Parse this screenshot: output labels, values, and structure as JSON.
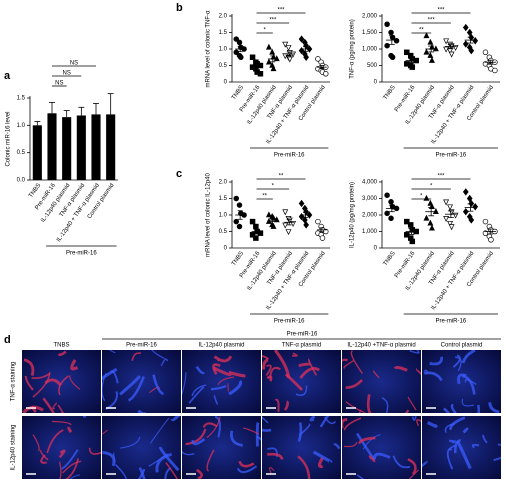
{
  "chart_data": [
    {
      "type": "bar",
      "panel_label": "a",
      "ylabel": "Colonic miR-16 level",
      "group_label": "Pre-miR-16",
      "categories": [
        "TNBS",
        "Pre-miR-16",
        "IL-12p40 plasmid",
        "TNF-α plasmid",
        "IL-12p40 + TNF-α plasmid",
        "Control plasmid"
      ],
      "values": [
        1.0,
        1.22,
        1.15,
        1.18,
        1.2,
        1.2
      ],
      "errors": [
        0.07,
        0.2,
        0.12,
        0.15,
        0.2,
        0.38
      ],
      "color": "#000000",
      "ylim": [
        0,
        1.5
      ],
      "yticks": [
        {
          "value": 0,
          "label": "0.0"
        },
        0.5,
        {
          "value": 1,
          "label": "1.0"
        },
        1.5
      ],
      "comparisons": [
        {
          "from": 1,
          "to": 4,
          "label": "NS"
        },
        {
          "from": 1,
          "to": 3,
          "label": "NS"
        },
        {
          "from": 1,
          "to": 2,
          "label": "NS"
        }
      ]
    },
    {
      "type": "dotplot",
      "panel_label": "b",
      "ylabel": "mRNA level of colonic TNF-α",
      "group_label": "Pre-miR-16",
      "categories": [
        "TNBS",
        "Pre-miR-16",
        "IL-12p40 plasmid",
        "TNF-α plasmid",
        "IL-12p40 + TNF-α plasmid",
        "Control plasmid"
      ],
      "markers": [
        "circle",
        "square",
        "triangle",
        "triangle-down-open",
        "diamond",
        "circle-open"
      ],
      "values": [
        [
          1.3,
          1.2,
          1.05,
          1.0,
          0.9,
          0.8,
          0.75
        ],
        [
          0.75,
          0.6,
          0.55,
          0.5,
          0.45,
          0.4,
          0.3,
          0.25
        ],
        [
          1.05,
          0.9,
          0.75,
          0.7,
          0.6,
          0.5,
          0.4
        ],
        [
          1.15,
          1.05,
          0.9,
          0.85,
          0.8,
          0.75,
          0.7
        ],
        [
          1.3,
          1.2,
          1.1,
          1.0,
          0.95,
          0.85,
          0.75
        ],
        [
          0.7,
          0.6,
          0.5,
          0.45,
          0.4,
          0.35,
          0.3,
          0.25
        ]
      ],
      "means": [
        1.0,
        0.5,
        0.7,
        0.85,
        1.0,
        0.45
      ],
      "errors": [
        0.08,
        0.06,
        0.09,
        0.06,
        0.07,
        0.05
      ],
      "ylim": [
        0,
        2
      ],
      "yticks": [
        0,
        0.5,
        {
          "value": 1,
          "label": "1.0"
        },
        1.5,
        {
          "value": 2,
          "label": "2.0"
        }
      ],
      "comparisons": [
        {
          "from": 1,
          "to": 4,
          "label": "***"
        },
        {
          "from": 1,
          "to": 3,
          "label": "***"
        },
        {
          "from": 1,
          "to": 2,
          "label": "*"
        }
      ]
    },
    {
      "type": "dotplot",
      "ylabel": "TNF-α (pg/mg protein)",
      "group_label": "Pre-miR-16",
      "categories": [
        "TNBS",
        "Pre-miR-16",
        "IL-12p40 plasmid",
        "TNF-α plasmid",
        "IL-12p40 + TNF-α plasmid",
        "Control plasmid"
      ],
      "markers": [
        "circle",
        "square",
        "triangle",
        "triangle-down-open",
        "diamond",
        "circle-open"
      ],
      "values": [
        [
          1750,
          1500,
          1350,
          1250,
          1100,
          800,
          750
        ],
        [
          900,
          800,
          700,
          650,
          550,
          500,
          450
        ],
        [
          1400,
          1200,
          1050,
          1000,
          900,
          800,
          650
        ],
        [
          1250,
          1150,
          1100,
          1050,
          1000,
          950,
          850
        ],
        [
          1650,
          1500,
          1350,
          1250,
          1150,
          1050,
          950
        ],
        [
          900,
          750,
          650,
          600,
          550,
          500,
          400,
          350
        ]
      ],
      "means": [
        1270,
        650,
        1000,
        1080,
        1270,
        600
      ],
      "errors": [
        130,
        60,
        90,
        50,
        90,
        60
      ],
      "ylim": [
        0,
        2000
      ],
      "yticks": [
        0,
        500,
        {
          "value": 1000,
          "label": "1,000"
        },
        {
          "value": 1500,
          "label": "1,500"
        },
        {
          "value": 2000,
          "label": "2,000"
        }
      ],
      "comparisons": [
        {
          "from": 1,
          "to": 4,
          "label": "***"
        },
        {
          "from": 1,
          "to": 3,
          "label": "***"
        },
        {
          "from": 1,
          "to": 2,
          "label": "**"
        }
      ]
    },
    {
      "type": "dotplot",
      "panel_label": "c",
      "ylabel": "mRNA level of colonic IL-12p40",
      "group_label": "Pre-miR-16",
      "categories": [
        "TNBS",
        "Pre-miR-16",
        "IL-12p40 plasmid",
        "TNF-α plasmid",
        "IL-12p40 + TNF-α plasmid",
        "Control plasmid"
      ],
      "markers": [
        "circle",
        "square",
        "triangle",
        "triangle-down-open",
        "diamond",
        "circle-open"
      ],
      "values": [
        [
          1.5,
          1.3,
          1.05,
          1.0,
          0.8,
          0.65
        ],
        [
          0.8,
          0.65,
          0.5,
          0.45,
          0.4,
          0.3
        ],
        [
          1.0,
          0.95,
          0.9,
          0.85,
          0.8,
          0.7,
          0.65
        ],
        [
          1.1,
          0.9,
          0.85,
          0.75,
          0.7,
          0.5
        ],
        [
          1.35,
          1.2,
          1.1,
          1.0,
          0.95,
          0.85,
          0.7
        ],
        [
          0.8,
          0.65,
          0.55,
          0.5,
          0.45,
          0.4,
          0.3
        ]
      ],
      "means": [
        1.0,
        0.5,
        0.85,
        0.78,
        1.0,
        0.55
      ],
      "errors": [
        0.13,
        0.07,
        0.05,
        0.08,
        0.08,
        0.06
      ],
      "ylim": [
        0,
        2
      ],
      "yticks": [
        0,
        0.5,
        {
          "value": 1,
          "label": "1.0"
        },
        1.5,
        {
          "value": 2,
          "label": "2.0"
        }
      ],
      "comparisons": [
        {
          "from": 1,
          "to": 4,
          "label": "**"
        },
        {
          "from": 1,
          "to": 3,
          "label": "*"
        },
        {
          "from": 1,
          "to": 2,
          "label": "**"
        }
      ]
    },
    {
      "type": "dotplot",
      "ylabel": "IL-12p40 (pg/mg protein)",
      "group_label": "Pre-miR-16",
      "categories": [
        "TNBS",
        "Pre-miR-16",
        "IL-12p40 plasmid",
        "TNF-α plasmid",
        "IL-12p40 + TNF-α plasmid",
        "Control plasmid"
      ],
      "markers": [
        "circle",
        "square",
        "triangle",
        "triangle-down-open",
        "diamond",
        "circle-open"
      ],
      "values": [
        [
          3200,
          2800,
          2500,
          2400,
          2100,
          1800
        ],
        [
          1600,
          1400,
          1100,
          1000,
          800,
          600,
          400
        ],
        [
          3000,
          2700,
          2500,
          2200,
          1800,
          1500,
          1200
        ],
        [
          2800,
          2500,
          2200,
          2000,
          1800,
          1500,
          1300
        ],
        [
          3400,
          3000,
          2700,
          2500,
          2200,
          1900,
          1700
        ],
        [
          1600,
          1300,
          1100,
          1000,
          900,
          700,
          500
        ]
      ],
      "means": [
        2400,
        1000,
        2200,
        2050,
        2450,
        1000
      ],
      "errors": [
        200,
        180,
        250,
        200,
        220,
        150
      ],
      "ylim": [
        0,
        4000
      ],
      "yticks": [
        0,
        {
          "value": 1000,
          "label": "1,000"
        },
        {
          "value": 2000,
          "label": "2,000"
        },
        {
          "value": 3000,
          "label": "3,000"
        },
        {
          "value": 4000,
          "label": "4,000"
        }
      ],
      "comparisons": [
        {
          "from": 1,
          "to": 4,
          "label": "***"
        },
        {
          "from": 1,
          "to": 3,
          "label": "*"
        },
        {
          "from": 1,
          "to": 2,
          "label": "*"
        }
      ]
    }
  ],
  "panel_d": {
    "panel_label": "d",
    "group_label": "Pre-miR-16",
    "columns": [
      "TNBS",
      "Pre-miR-16",
      "IL-12p40 plasmid",
      "TNF-α plasmid",
      "IL-12p40 +TNF-α plasmid",
      "Control plasmid"
    ],
    "rows": [
      "TNF-α staining",
      "IL-12p40 staining"
    ]
  }
}
